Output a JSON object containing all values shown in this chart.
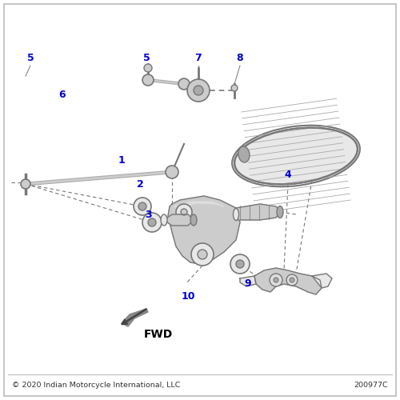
{
  "background_color": "#ffffff",
  "border_color": "#bbbbbb",
  "label_color": "#0000cc",
  "line_color": "#777777",
  "part_fill_light": "#e8e8e8",
  "part_fill_mid": "#cccccc",
  "part_fill_dark": "#aaaaaa",
  "copyright_text": "© 2020 Indian Motorcycle International, LLC",
  "part_number": "200977C",
  "fwd_text": "FWD"
}
